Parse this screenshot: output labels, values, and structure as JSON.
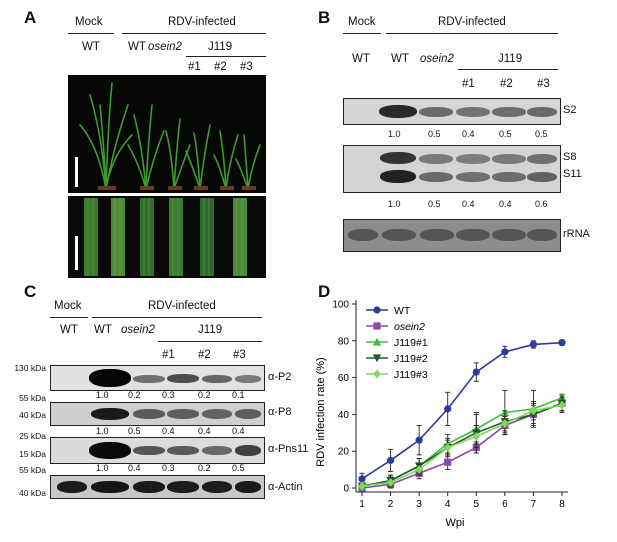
{
  "panels": {
    "a": "A",
    "b": "B",
    "c": "C",
    "d": "D"
  },
  "panel_a": {
    "mock": "Mock",
    "infected": "RDV-infected",
    "wt1": "WT",
    "wt2": "WT",
    "osein2": "osein2",
    "j119": "J119",
    "lines": [
      "#1",
      "#2",
      "#3"
    ]
  },
  "panel_b": {
    "mock": "Mock",
    "infected": "RDV-infected",
    "wt_mock": "WT",
    "wt": "WT",
    "osein2": "osein2",
    "j119": "J119",
    "lines": [
      "#1",
      "#2",
      "#3"
    ],
    "labels": {
      "s2": "S2",
      "s8": "S8",
      "s11": "S11",
      "rrna": "rRNA"
    },
    "quant_s2": [
      "1.0",
      "0.5",
      "0.4",
      "0.5",
      "0.5"
    ],
    "quant_s8": [
      "1.0",
      "0.5",
      "0.4",
      "0.4",
      "0.6"
    ]
  },
  "panel_c": {
    "mock": "Mock",
    "infected": "RDV-infected",
    "wt_mock": "WT",
    "wt": "WT",
    "osein2": "osein2",
    "j119": "J119",
    "lines": [
      "#1",
      "#2",
      "#3"
    ],
    "markers": {
      "p2_top": "130 kDa",
      "p2_bot": "55 kDa",
      "p8": "40 kDa",
      "pns_top": "25 kDa",
      "pns_bot": "15 kDa",
      "actin_top": "55 kDa",
      "actin_bot": "40 kDa"
    },
    "antibodies": {
      "p2": "α-P2",
      "p8": "α-P8",
      "pns11": "α-Pns11",
      "actin": "α-Actin"
    },
    "quant_p2": [
      "1.0",
      "0.2",
      "0.3",
      "0.2",
      "0.1"
    ],
    "quant_p8": [
      "1.0",
      "0.5",
      "0.4",
      "0.4",
      "0.4"
    ],
    "quant_pns11": [
      "1.0",
      "0.4",
      "0.3",
      "0.2",
      "0.5"
    ]
  },
  "chart_data": {
    "type": "line",
    "xlabel": "Wpi",
    "ylabel": "RDV infection rate (%)",
    "x": [
      1,
      2,
      3,
      4,
      5,
      6,
      7,
      8
    ],
    "ylim": [
      0,
      100
    ],
    "yticks": [
      0,
      20,
      40,
      60,
      80,
      100
    ],
    "legend_position": "top-left",
    "series": [
      {
        "name": "WT",
        "color": "#2a3a9e",
        "marker": "circle",
        "values": [
          5,
          15,
          26,
          43,
          63,
          74,
          78,
          79
        ],
        "errors": [
          3,
          6,
          8,
          9,
          5,
          3,
          2,
          1.5
        ]
      },
      {
        "name": "osein2",
        "color": "#8b4aa8",
        "marker": "square",
        "values": [
          0,
          2,
          8,
          14,
          22,
          34,
          40,
          46
        ],
        "errors": [
          1,
          2,
          3,
          4,
          3,
          5,
          5,
          4
        ]
      },
      {
        "name": "J119#1",
        "color": "#3fbf3f",
        "marker": "triangle-up",
        "values": [
          1,
          4,
          12,
          24,
          32,
          41,
          43,
          49
        ],
        "errors": [
          1,
          3,
          4,
          5,
          8,
          12,
          10,
          2
        ]
      },
      {
        "name": "J119#2",
        "color": "#1d5e28",
        "marker": "triangle-down",
        "values": [
          1,
          4,
          12,
          22,
          30,
          36,
          40,
          46
        ],
        "errors": [
          1,
          3,
          4,
          4,
          11,
          6,
          6,
          4
        ]
      },
      {
        "name": "J119#3",
        "color": "#7ed957",
        "marker": "diamond",
        "values": [
          1,
          3,
          10,
          22,
          28,
          35,
          42,
          45
        ],
        "errors": [
          1,
          3,
          3,
          5,
          6,
          4,
          5,
          4
        ]
      }
    ]
  }
}
